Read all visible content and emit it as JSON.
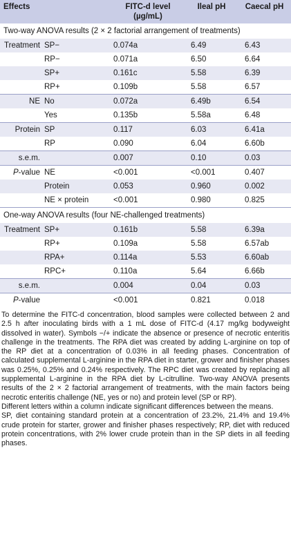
{
  "header": {
    "effects": "Effects",
    "fitc": "FITC-d level (µg/mL)",
    "ileal": "Ileal pH",
    "caecal": "Caecal pH"
  },
  "two_way": {
    "title": "Two-way ANOVA results (2 × 2 factorial arrangement of treatments)",
    "rows": [
      {
        "effect": "Treatment",
        "level": "SP−",
        "fitc": "0.074a",
        "ileal": "6.49",
        "caecal": "6.43"
      },
      {
        "effect": "",
        "level": "RP−",
        "fitc": "0.071a",
        "ileal": "6.50",
        "caecal": "6.64"
      },
      {
        "effect": "",
        "level": "SP+",
        "fitc": "0.161c",
        "ileal": "5.58",
        "caecal": "6.39"
      },
      {
        "effect": "",
        "level": "RP+",
        "fitc": "0.109b",
        "ileal": "5.58",
        "caecal": "6.57"
      },
      {
        "effect": "NE",
        "level": "No",
        "fitc": "0.072a",
        "ileal": "6.49b",
        "caecal": "6.54"
      },
      {
        "effect": "",
        "level": "Yes",
        "fitc": "0.135b",
        "ileal": "5.58a",
        "caecal": "6.48"
      },
      {
        "effect": "Protein",
        "level": "SP",
        "fitc": "0.117",
        "ileal": "6.03",
        "caecal": "6.41a"
      },
      {
        "effect": "",
        "level": "RP",
        "fitc": "0.090",
        "ileal": "6.04",
        "caecal": "6.60b"
      },
      {
        "effect": "s.e.m.",
        "level": "",
        "fitc": "0.007",
        "ileal": "0.10",
        "caecal": "0.03"
      },
      {
        "effect": "P-value",
        "level": "NE",
        "fitc": "<0.001",
        "ileal": "<0.001",
        "caecal": "0.407"
      },
      {
        "effect": "",
        "level": "Protein",
        "fitc": "0.053",
        "ileal": "0.960",
        "caecal": "0.002"
      },
      {
        "effect": "",
        "level": "NE × protein",
        "fitc": "<0.001",
        "ileal": "0.980",
        "caecal": "0.825"
      }
    ]
  },
  "one_way": {
    "title": "One-way ANOVA results (four NE-challenged treatments)",
    "rows": [
      {
        "effect": "Treatment",
        "level": "SP+",
        "fitc": "0.161b",
        "ileal": "5.58",
        "caecal": "6.39a"
      },
      {
        "effect": "",
        "level": "RP+",
        "fitc": "0.109a",
        "ileal": "5.58",
        "caecal": "6.57ab"
      },
      {
        "effect": "",
        "level": "RPA+",
        "fitc": "0.114a",
        "ileal": "5.53",
        "caecal": "6.60ab"
      },
      {
        "effect": "",
        "level": "RPC+",
        "fitc": "0.110a",
        "ileal": "5.64",
        "caecal": "6.66b"
      },
      {
        "effect": "s.e.m.",
        "level": "",
        "fitc": "0.004",
        "ileal": "0.04",
        "caecal": "0.03"
      },
      {
        "effect": "P-value",
        "level": "",
        "fitc": "<0.001",
        "ileal": "0.821",
        "caecal": "0.018"
      }
    ]
  },
  "notes": {
    "p1": "To determine the FITC-d concentration, blood samples were collected between 2 and 2.5 h after inoculating birds with a 1 mL dose of FITC-d (4.17 mg/kg bodyweight dissolved in water). Symbols −/+ indicate the absence or presence of necrotic enteritis challenge in the treatments. The RPA diet was created by adding L-arginine on top of the RP diet at a concentration of 0.03% in all feeding phases. Concentration of calculated supplemental L-arginine in the RPA diet in starter, grower and finisher phases was 0.25%, 0.25% and 0.24% respectively. The RPC diet was created by replacing all supplemental L-arginine in the RPA diet by L-citrulline. Two-way ANOVA presents results of the 2 × 2 factorial arrangement of treatments, with the main factors being necrotic enteritis challenge (NE, yes or no) and protein level (SP or RP).",
    "p2": "Different letters within a column indicate significant differences between the means.",
    "p3": "SP, diet containing standard protein at a concentration of 23.2%, 21.4% and 19.4% crude protein for starter, grower and finisher phases respectively; RP, diet with reduced protein concentrations, with 2% lower crude protein than in the SP diets in all feeding phases."
  }
}
